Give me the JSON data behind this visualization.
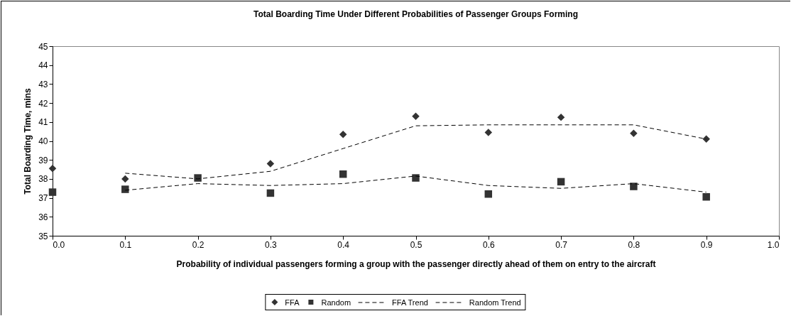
{
  "chart_data": {
    "type": "scatter",
    "title": "Total Boarding Time Under Different Probabilities of Passenger Groups Forming",
    "xlabel": "Probability of individual passengers forming a group with the passenger directly ahead of them on entry to the aircraft",
    "ylabel": "Total Boarding Time, mins",
    "x": [
      0,
      0.1,
      0.2,
      0.3,
      0.4,
      0.5,
      0.6,
      0.7,
      0.8,
      0.9
    ],
    "series": [
      {
        "name": "FFA",
        "marker": "diamond",
        "color": "#333333",
        "values": [
          38.55,
          38.0,
          null,
          38.8,
          40.35,
          41.3,
          40.45,
          41.25,
          40.4,
          40.1
        ]
      },
      {
        "name": "Random",
        "marker": "square",
        "color": "#333333",
        "values": [
          37.3,
          37.45,
          38.05,
          37.25,
          38.25,
          38.05,
          37.2,
          37.85,
          37.6,
          37.05
        ]
      },
      {
        "name": "FFA Trend",
        "type": "line",
        "line_style": "dashed",
        "color": "#000000",
        "x": [
          0.1,
          0.2,
          0.3,
          0.4,
          0.5,
          0.6,
          0.7,
          0.8,
          0.9
        ],
        "values": [
          38.3,
          38.0,
          38.4,
          39.6,
          40.8,
          40.85,
          40.85,
          40.85,
          40.1
        ]
      },
      {
        "name": "Random Trend",
        "type": "line",
        "line_style": "dashed",
        "color": "#000000",
        "x": [
          0.1,
          0.2,
          0.3,
          0.4,
          0.5,
          0.6,
          0.7,
          0.8,
          0.9
        ],
        "values": [
          37.4,
          37.75,
          37.65,
          37.75,
          38.15,
          37.65,
          37.5,
          37.75,
          37.3
        ]
      }
    ],
    "xlim": [
      0,
      1
    ],
    "xticks": [
      {
        "value": 0,
        "label": "0.0"
      },
      0.1,
      0.2,
      0.3,
      0.4,
      0.5,
      0.6,
      0.7,
      0.8,
      0.9,
      {
        "value": 1,
        "label": "1.0"
      }
    ],
    "ylim": [
      35,
      45
    ],
    "yticks": [
      35,
      36,
      37,
      38,
      39,
      40,
      41,
      42,
      43,
      44,
      45
    ],
    "legend": "bottom"
  }
}
